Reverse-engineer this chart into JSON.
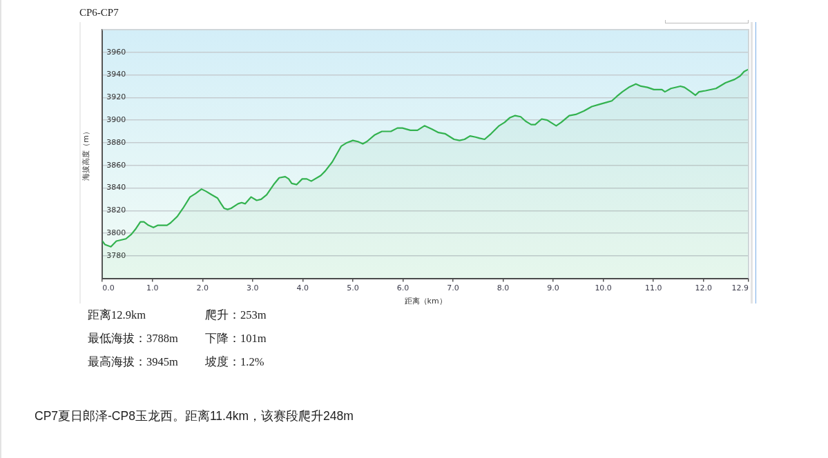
{
  "chart_data": {
    "type": "area",
    "title": "CP6-CP7",
    "xlabel": "距离（km）",
    "ylabel": "海拔高度（m）",
    "x": [
      0,
      0.05,
      0.17,
      0.28,
      0.47,
      0.58,
      0.67,
      0.76,
      0.83,
      0.92,
      1.02,
      1.11,
      1.29,
      1.36,
      1.5,
      1.61,
      1.75,
      1.86,
      1.98,
      2.07,
      2.18,
      2.3,
      2.37,
      2.43,
      2.5,
      2.57,
      2.71,
      2.78,
      2.85,
      2.97,
      3.08,
      3.17,
      3.28,
      3.42,
      3.53,
      3.65,
      3.72,
      3.78,
      3.88,
      3.99,
      4.08,
      4.17,
      4.36,
      4.45,
      4.59,
      4.68,
      4.77,
      4.88,
      5.0,
      5.1,
      5.2,
      5.28,
      5.44,
      5.58,
      5.76,
      5.89,
      5.99,
      6.15,
      6.29,
      6.43,
      6.58,
      6.71,
      6.84,
      7.02,
      7.13,
      7.23,
      7.34,
      7.45,
      7.53,
      7.63,
      7.76,
      7.92,
      8.03,
      8.13,
      8.24,
      8.35,
      8.45,
      8.56,
      8.64,
      8.77,
      8.88,
      8.95,
      9.06,
      9.16,
      9.32,
      9.45,
      9.61,
      9.77,
      9.93,
      10.09,
      10.17,
      10.27,
      10.38,
      10.51,
      10.65,
      10.75,
      10.88,
      11.01,
      11.17,
      11.23,
      11.35,
      11.54,
      11.62,
      11.75,
      11.84,
      11.91,
      12.04,
      12.25,
      12.44,
      12.62,
      12.73,
      12.81,
      12.9
    ],
    "series": [
      {
        "color": "#33b24f",
        "values": [
          3793,
          3790,
          3788,
          3793,
          3795,
          3799,
          3804,
          3810,
          3810,
          3807,
          3805,
          3807,
          3807,
          3809,
          3815,
          3822,
          3832,
          3835,
          3839,
          3837,
          3834,
          3831,
          3826,
          3822,
          3821,
          3822,
          3826,
          3827,
          3826,
          3832,
          3829,
          3830,
          3834,
          3843,
          3849,
          3850,
          3848,
          3844,
          3843,
          3848,
          3848,
          3846,
          3851,
          3855,
          3863,
          3870,
          3877,
          3880,
          3882,
          3881,
          3879,
          3881,
          3887,
          3890,
          3890,
          3893,
          3893,
          3891,
          3891,
          3895,
          3892,
          3889,
          3888,
          3883,
          3882,
          3883,
          3886,
          3885,
          3884,
          3883,
          3888,
          3895,
          3898,
          3902,
          3904,
          3903,
          3899,
          3896,
          3896,
          3901,
          3900,
          3898,
          3895,
          3898,
          3904,
          3905,
          3908,
          3912,
          3914,
          3916,
          3917,
          3921,
          3925,
          3929,
          3932,
          3930,
          3929,
          3927,
          3927,
          3925,
          3928,
          3930,
          3929,
          3925,
          3922,
          3925,
          3926,
          3928,
          3933,
          3936,
          3939,
          3943,
          3945
        ]
      }
    ],
    "xlim": [
      0,
      12.9
    ],
    "xticks": [
      {
        "value": 0,
        "label": "0.0"
      },
      {
        "value": 1,
        "label": "1.0"
      },
      {
        "value": 2,
        "label": "2.0"
      },
      {
        "value": 3,
        "label": "3.0"
      },
      {
        "value": 4,
        "label": "4.0"
      },
      {
        "value": 5,
        "label": "5.0"
      },
      {
        "value": 6,
        "label": "6.0"
      },
      {
        "value": 7,
        "label": "7.0"
      },
      {
        "value": 8,
        "label": "8.0"
      },
      {
        "value": 9,
        "label": "9.0"
      },
      {
        "value": 10,
        "label": "10.0"
      },
      {
        "value": 11,
        "label": "11.0"
      },
      {
        "value": 12,
        "label": "12.0"
      },
      12.9
    ],
    "ylim": [
      3760,
      3980
    ],
    "yticks": [
      3780,
      3800,
      3820,
      3840,
      3860,
      3880,
      3900,
      3920,
      3940,
      3960
    ],
    "grid": "y",
    "annotations": [
      "距离12.9km",
      "爬升：253m",
      "最低海拔：3788m",
      "下降：101m",
      "最高海拔：3945m",
      "坡度：1.2%",
      "CP7夏日郎泽-CP8玉龙西。距离11.4km，该赛段爬升248m"
    ]
  }
}
